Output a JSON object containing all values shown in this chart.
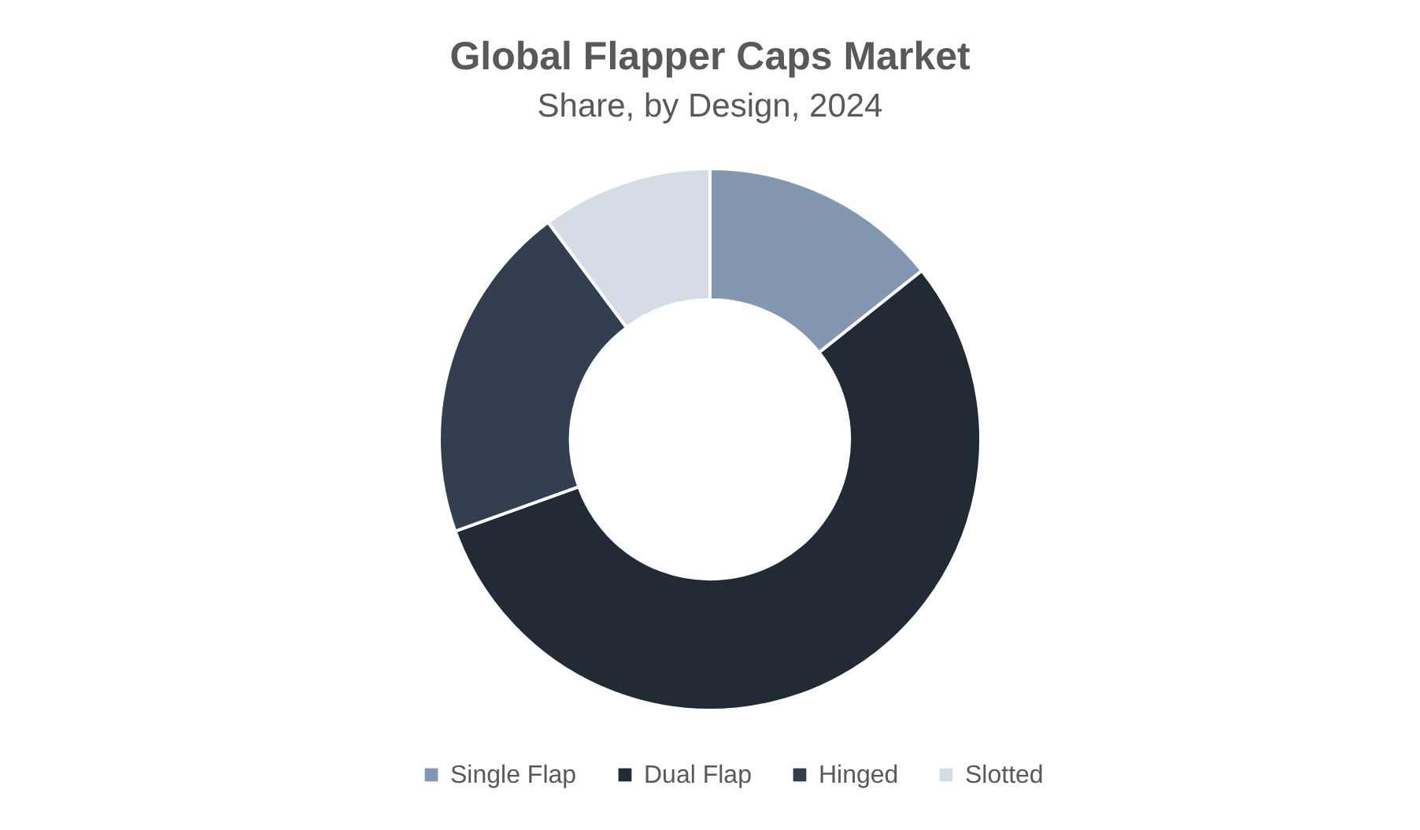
{
  "chart_data": {
    "type": "donut",
    "title": "Global Flapper Caps Market",
    "subtitle": "Share, by Design, 2024",
    "categories": [
      "Single Flap",
      "Dual Flap",
      "Hinged",
      "Slotted"
    ],
    "values": [
      14.3,
      55.2,
      20.3,
      10.2
    ],
    "colors": [
      "#8497b0",
      "#222a35",
      "#333f50",
      "#d6dce5"
    ],
    "legend": "bottom"
  }
}
